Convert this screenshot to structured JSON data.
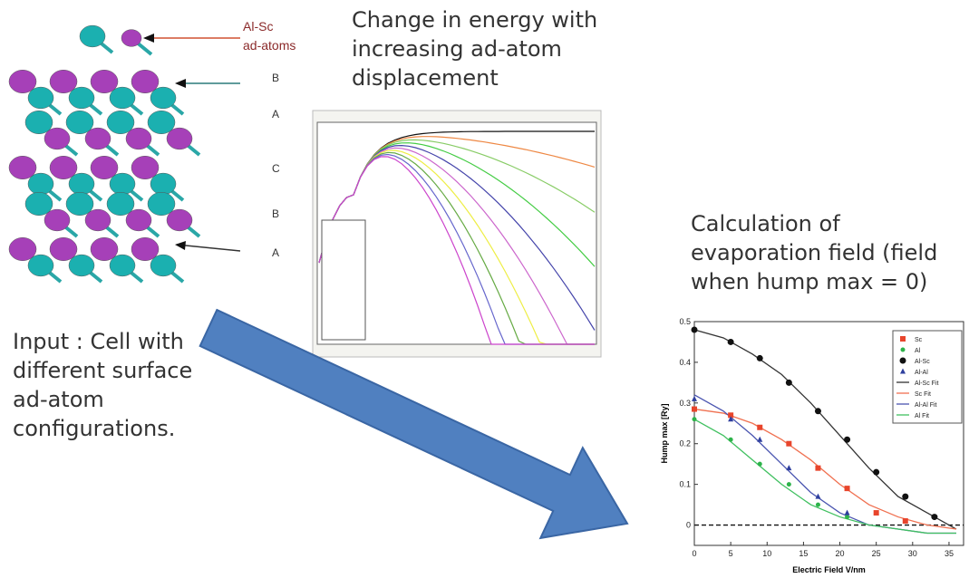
{
  "crystal": {
    "adatom_label": [
      "Al-Sc",
      "ad-atoms"
    ],
    "layers": [
      "B",
      "A",
      "C",
      "B",
      "A"
    ]
  },
  "energy_panel": {
    "title": [
      "Change in energy with",
      "increasing ad-atom",
      "displacement"
    ]
  },
  "input_text": [
    "Input : Cell with",
    "different surface",
    "ad-atom",
    "configurations."
  ],
  "evaporation_panel": {
    "title": [
      "Calculation of",
      "evaporation field (field",
      "when hump max = 0)"
    ]
  },
  "chart_data": {
    "type": "scatter",
    "x_label": "Electric Field V/nm",
    "y_label": "Hump max [Ry]",
    "xlim": [
      0,
      37
    ],
    "ylim": [
      -0.05,
      0.5
    ],
    "xticks": [
      0,
      5,
      10,
      15,
      20,
      25,
      30,
      35
    ],
    "yticks": [
      0,
      0.1,
      0.2,
      0.3,
      0.4,
      0.5
    ],
    "legend": "upper right",
    "series": [
      {
        "name": "Sc",
        "color": "#e8452c",
        "marker": "square",
        "x": [
          0,
          5,
          9,
          13,
          17,
          21,
          25,
          29
        ],
        "values": [
          0.285,
          0.27,
          0.24,
          0.2,
          0.14,
          0.09,
          0.03,
          0.01
        ]
      },
      {
        "name": "Al",
        "color": "#2db34a",
        "marker": "circle",
        "x": [
          0,
          5,
          9,
          13,
          17,
          21
        ],
        "values": [
          0.26,
          0.21,
          0.15,
          0.1,
          0.05,
          0.02
        ]
      },
      {
        "name": "Al-Sc",
        "color": "#111111",
        "marker": "circle",
        "x": [
          0,
          5,
          9,
          13,
          17,
          21,
          25,
          29,
          33
        ],
        "values": [
          0.48,
          0.45,
          0.41,
          0.35,
          0.28,
          0.21,
          0.13,
          0.07,
          0.02
        ]
      },
      {
        "name": "Al-Al",
        "color": "#2e3f9e",
        "marker": "triangle",
        "x": [
          0,
          5,
          9,
          13,
          17,
          21
        ],
        "values": [
          0.31,
          0.26,
          0.21,
          0.14,
          0.07,
          0.03
        ]
      },
      {
        "name": "Al-Sc Fit",
        "color": "#333333",
        "marker": "line",
        "x": [
          0,
          4,
          8,
          12,
          16,
          20,
          24,
          28,
          32,
          36
        ],
        "values": [
          0.48,
          0.46,
          0.42,
          0.37,
          0.3,
          0.22,
          0.14,
          0.07,
          0.03,
          -0.01
        ]
      },
      {
        "name": "Sc Fit",
        "color": "#f07050",
        "marker": "line",
        "x": [
          0,
          4,
          8,
          12,
          16,
          20,
          24,
          28,
          32,
          36
        ],
        "values": [
          0.285,
          0.275,
          0.25,
          0.21,
          0.16,
          0.1,
          0.05,
          0.02,
          0,
          -0.01
        ]
      },
      {
        "name": "Al-Al Fit",
        "color": "#4a55b0",
        "marker": "line",
        "x": [
          0,
          4,
          8,
          12,
          16,
          20,
          24,
          28,
          32,
          36
        ],
        "values": [
          0.32,
          0.28,
          0.22,
          0.15,
          0.08,
          0.03,
          0,
          -0.01,
          -0.02,
          -0.02
        ]
      },
      {
        "name": "Al Fit",
        "color": "#40c060",
        "marker": "line",
        "x": [
          0,
          4,
          8,
          12,
          16,
          20,
          24,
          28,
          32,
          36
        ],
        "values": [
          0.26,
          0.22,
          0.16,
          0.1,
          0.05,
          0.02,
          0,
          -0.01,
          -0.02,
          -0.02
        ]
      }
    ]
  }
}
